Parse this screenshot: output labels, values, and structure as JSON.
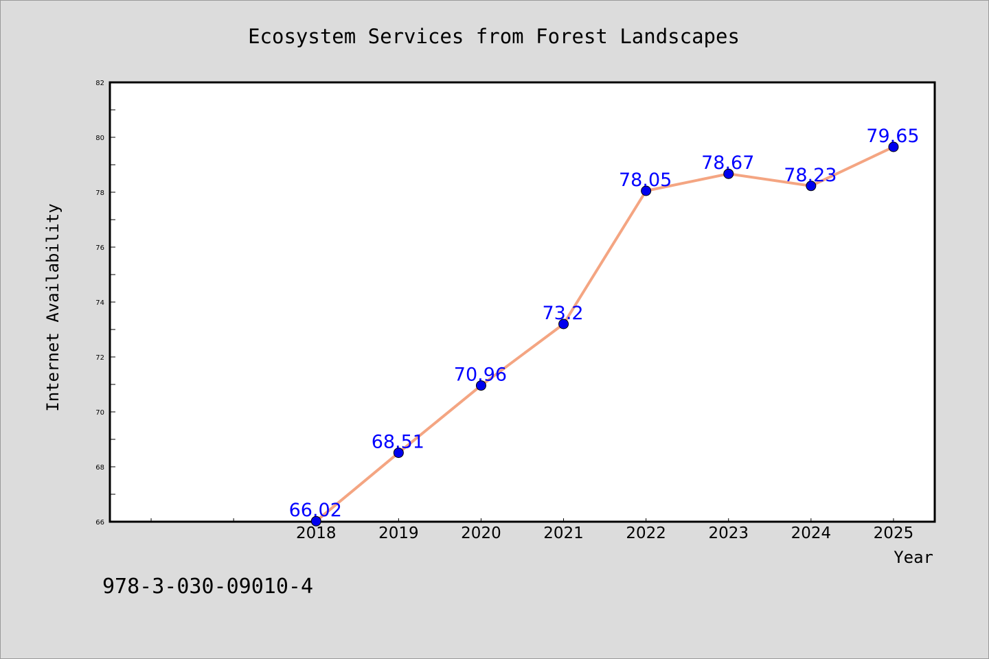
{
  "chart_data": {
    "type": "line",
    "title": "Ecosystem Services from Forest Landscapes",
    "xlabel": "Year",
    "ylabel": "Internet Availability",
    "x": [
      "2018",
      "2019",
      "2020",
      "2021",
      "2022",
      "2023",
      "2024",
      "2025"
    ],
    "x_positions": [
      2018,
      2019,
      2020,
      2021,
      2022,
      2023,
      2024,
      2025
    ],
    "xlim": [
      2015.5,
      2025.5
    ],
    "series": [
      {
        "values": [
          66.02,
          68.51,
          70.96,
          73.2,
          78.05,
          78.67,
          78.23,
          79.65
        ],
        "labels": [
          "66.02",
          "68.51",
          "70.96",
          "73.2",
          "78.05",
          "78.67",
          "78.23",
          "79.65"
        ],
        "line_color": "#f4a582",
        "marker_color": "#0000ee"
      }
    ],
    "ylim": [
      66,
      82
    ],
    "yticks": [
      "66",
      "68",
      "70",
      "72",
      "74",
      "76",
      "78",
      "80",
      "82"
    ],
    "grid": false,
    "legend": "none",
    "label_color": "#0000ff"
  },
  "footer": {
    "isbn": "978-3-030-09010-4"
  }
}
